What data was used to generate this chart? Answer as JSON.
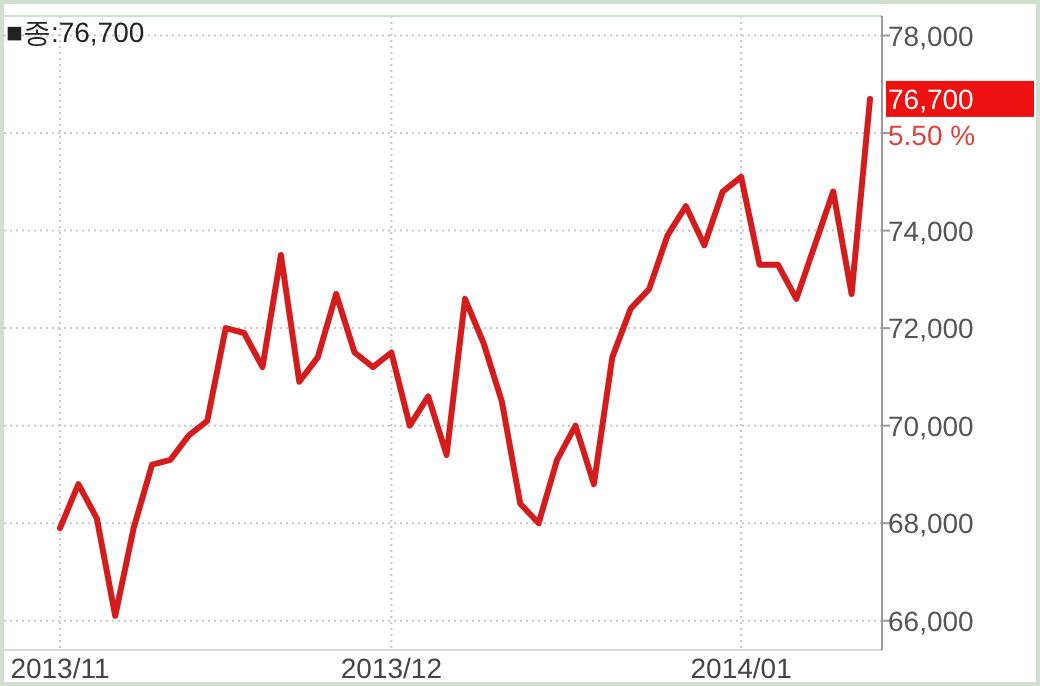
{
  "chart_data": {
    "type": "line",
    "categories": [
      "2013/11",
      null,
      null,
      null,
      null,
      null,
      null,
      null,
      null,
      null,
      null,
      null,
      null,
      null,
      null,
      null,
      null,
      null,
      "2013/12",
      null,
      null,
      null,
      null,
      null,
      null,
      null,
      null,
      null,
      null,
      null,
      null,
      null,
      null,
      null,
      null,
      null,
      null,
      "2014/01",
      null,
      null,
      null,
      null,
      null,
      null,
      null
    ],
    "series": [
      {
        "color": "#d41c1c",
        "values": [
          67900,
          68800,
          68100,
          66100,
          67900,
          69200,
          69300,
          69800,
          70100,
          72000,
          71900,
          71200,
          73500,
          70900,
          71400,
          72700,
          71500,
          71200,
          71500,
          70000,
          70600,
          69400,
          72600,
          71700,
          70500,
          68400,
          68000,
          69300,
          70000,
          68800,
          71400,
          72400,
          72800,
          73900,
          74500,
          73700,
          74800,
          75100,
          73300,
          73300,
          72600,
          73700,
          74800,
          72700,
          76700
        ]
      }
    ],
    "ylim": [
      65400,
      78400
    ],
    "yticks": [
      {
        "value": 66000,
        "label": "66,000"
      },
      {
        "value": 68000,
        "label": "68,000"
      },
      {
        "value": 70000,
        "label": "70,000"
      },
      {
        "value": 72000,
        "label": "72,000"
      },
      {
        "value": 74000,
        "label": "74,000"
      },
      {
        "value": 76000,
        "label": null
      },
      {
        "value": 78000,
        "label": "78,000"
      }
    ],
    "grid": true,
    "line_style": "solid",
    "annotations": [
      "■종:76,700",
      "76,700",
      "5.50 %"
    ]
  }
}
